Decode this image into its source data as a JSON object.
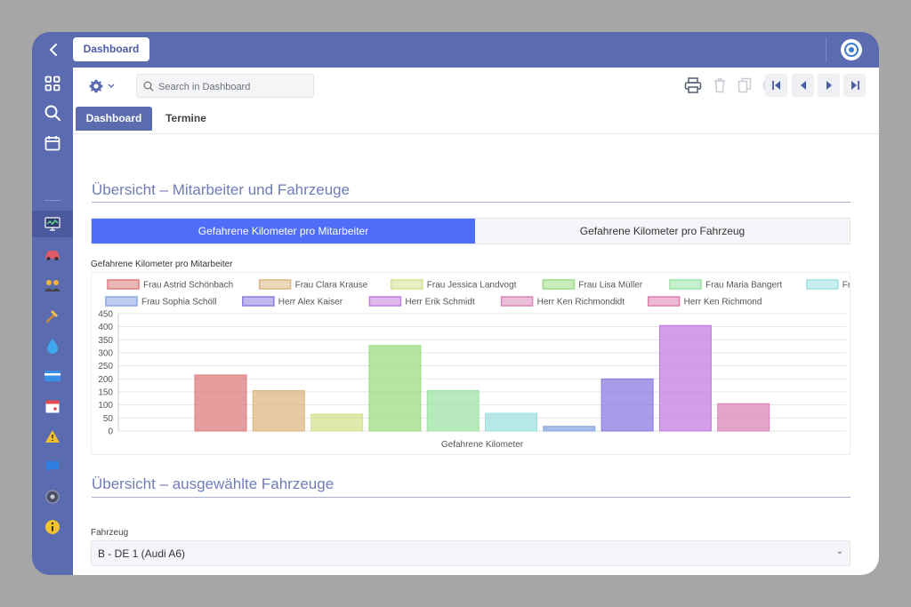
{
  "topbar": {
    "tab_label": "Dashboard"
  },
  "toolbar": {
    "search_placeholder": "Search in Dashboard"
  },
  "subtabs": {
    "dashboard": "Dashboard",
    "termine": "Termine"
  },
  "section1": {
    "title": "Übersicht – Mitarbeiter und Fahrzeuge",
    "seg_left": "Gefahrene Kilometer pro Mitarbeiter",
    "seg_right": "Gefahrene Kilometer pro Fahrzeug",
    "chart_label": "Gefahrene Kilometer pro Mitarbeiter"
  },
  "section2": {
    "title": "Übersicht – ausgewählte Fahrzeuge",
    "field_label": "Fahrzeug",
    "selected_vehicle": "B - DE 1 (Audi A6)"
  },
  "chart_data": {
    "type": "bar",
    "xlabel": "Gefahrene Kilometer",
    "ylabel": "",
    "ylim": [
      0,
      450
    ],
    "yticks": [
      0,
      50,
      100,
      150,
      200,
      250,
      300,
      350,
      400,
      450
    ],
    "grid": true,
    "legend_position": "top",
    "series": [
      {
        "name": "Frau Astrid Schönbach",
        "value": 215,
        "color": "#dc7c7c"
      },
      {
        "name": "Frau Clara Krause",
        "value": 155,
        "color": "#ddb583"
      },
      {
        "name": "Frau Jessica Landvogt",
        "value": 65,
        "color": "#d5e08f"
      },
      {
        "name": "Frau Lisa Müller",
        "value": 328,
        "color": "#9bdc84"
      },
      {
        "name": "Frau Maria Bangert",
        "value": 155,
        "color": "#9de3a5"
      },
      {
        "name": "Frau Nora Gemsen",
        "value": 68,
        "color": "#9de0df"
      },
      {
        "name": "Frau Sophia Schöll",
        "value": 18,
        "color": "#8aa5e0"
      },
      {
        "name": "Herr Alex Kaiser",
        "value": 200,
        "color": "#8a7be0"
      },
      {
        "name": "Herr Erik Schmidt",
        "value": 405,
        "color": "#c47de0"
      },
      {
        "name": "Herr Ken Richmondidt",
        "value": 105,
        "color": "#d986b9"
      },
      {
        "name": "Herr Ken Richmond",
        "value": 0,
        "color": "#de7fb0"
      }
    ]
  }
}
